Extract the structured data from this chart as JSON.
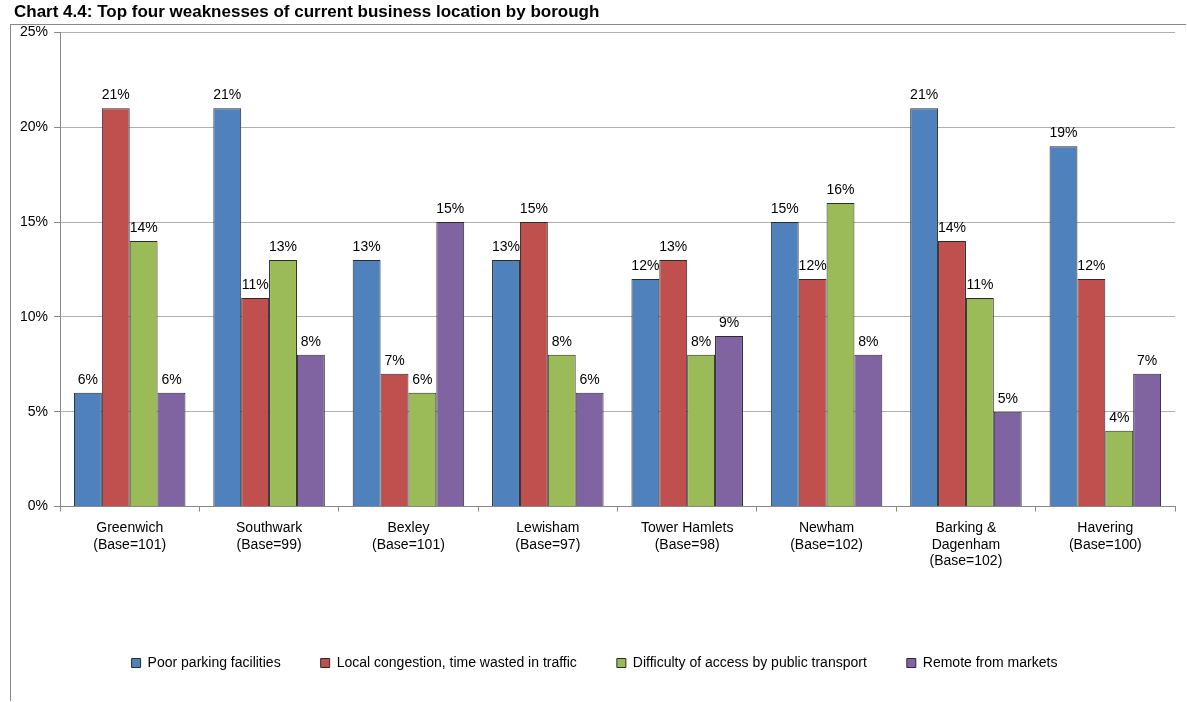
{
  "chart_data": {
    "type": "bar",
    "title": "Chart 4.4: Top four weaknesses of current business location by borough",
    "categories": [
      "Greenwich\n(Base=101)",
      "Southwark\n(Base=99)",
      "Bexley\n(Base=101)",
      "Lewisham\n(Base=97)",
      "Tower Hamlets\n(Base=98)",
      "Newham\n(Base=102)",
      "Barking &\nDagenham\n(Base=102)",
      "Havering\n(Base=100)"
    ],
    "series": [
      {
        "name": "Poor parking facilities",
        "color": "#4f81bd",
        "values": [
          6,
          21,
          13,
          13,
          12,
          15,
          21,
          19
        ],
        "value_labels": [
          "6%",
          "21%",
          "13%",
          "13%",
          "12%",
          "15%",
          "21%",
          "19%"
        ]
      },
      {
        "name": "Local congestion, time wasted in traffic",
        "color": "#c0504d",
        "values": [
          21,
          11,
          7,
          15,
          13,
          12,
          14,
          12
        ],
        "value_labels": [
          "21%",
          "11%",
          "7%",
          "15%",
          "13%",
          "12%",
          "14%",
          "12%"
        ]
      },
      {
        "name": "Difficulty of access by public transport",
        "color": "#9bbb59",
        "values": [
          14,
          13,
          6,
          8,
          8,
          16,
          11,
          4
        ],
        "value_labels": [
          "14%",
          "13%",
          "6%",
          "8%",
          "8%",
          "16%",
          "11%",
          "4%"
        ]
      },
      {
        "name": "Remote from markets",
        "color": "#8064a2",
        "values": [
          6,
          8,
          15,
          6,
          9,
          8,
          5,
          7
        ],
        "value_labels": [
          "6%",
          "8%",
          "15%",
          "6%",
          "9%",
          "8%",
          "5%",
          "7%"
        ]
      }
    ],
    "ylim": [
      0,
      25
    ],
    "yticks": [
      {
        "value": 0,
        "label": "0%"
      },
      {
        "value": 5,
        "label": "5%"
      },
      {
        "value": 10,
        "label": "10%"
      },
      {
        "value": 15,
        "label": "15%"
      },
      {
        "value": 20,
        "label": "20%"
      },
      {
        "value": 25,
        "label": "25%"
      }
    ],
    "grid": "y",
    "legend": "bottom"
  }
}
